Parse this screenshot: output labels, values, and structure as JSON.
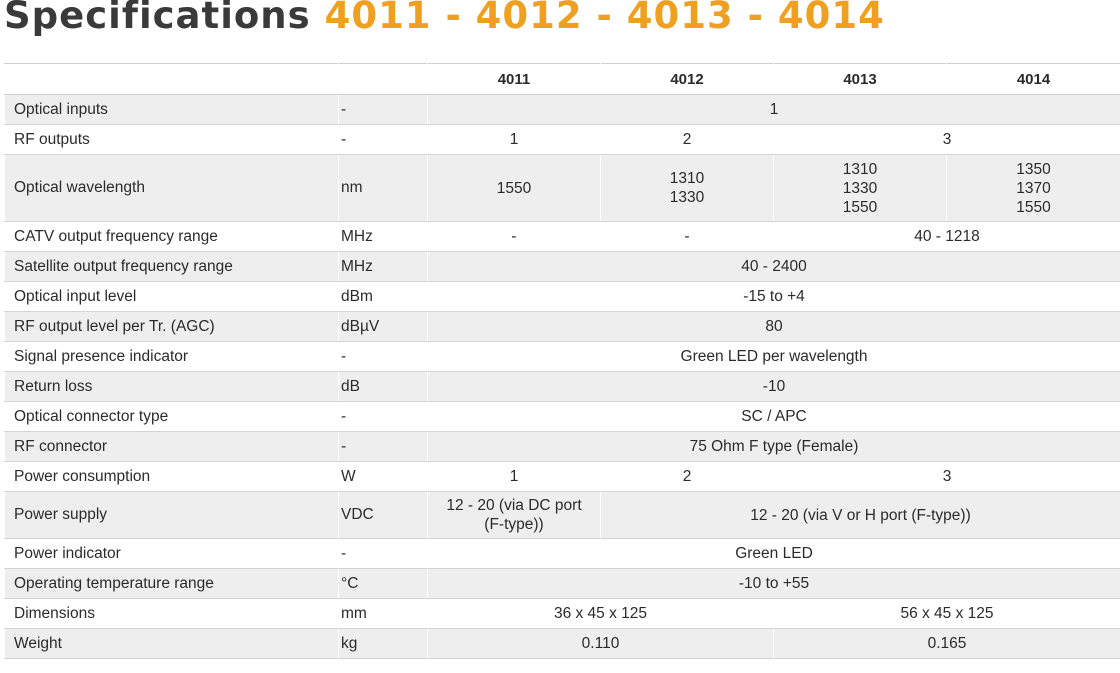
{
  "title": {
    "prefix": "Specifications",
    "models": "4011 - 4012 - 4013 - 4014"
  },
  "table": {
    "headers": [
      "4011",
      "4012",
      "4013",
      "4014"
    ],
    "rows": [
      {
        "name": "Optical inputs",
        "unit": "-",
        "v": [
          "1"
        ]
      },
      {
        "name": "RF outputs",
        "unit": "-",
        "v": [
          "1",
          "2",
          "3"
        ]
      },
      {
        "name": "Optical wavelength",
        "unit": "nm",
        "v": [
          "1550",
          "1310\n1330",
          "1310\n1330\n1550",
          "1350\n1370\n1550"
        ]
      },
      {
        "name": "CATV output frequency range",
        "unit": "MHz",
        "v": [
          "-",
          "-",
          "40 - 1218"
        ]
      },
      {
        "name": "Satellite output frequency range",
        "unit": "MHz",
        "v": [
          "40 - 2400"
        ]
      },
      {
        "name": "Optical input level",
        "unit": "dBm",
        "v": [
          "-15 to +4"
        ]
      },
      {
        "name": "RF output level per Tr. (AGC)",
        "unit": "dBµV",
        "v": [
          "80"
        ]
      },
      {
        "name": "Signal presence indicator",
        "unit": "-",
        "v": [
          "Green LED per wavelength"
        ]
      },
      {
        "name": "Return loss",
        "unit": "dB",
        "v": [
          "-10"
        ]
      },
      {
        "name": "Optical connector type",
        "unit": "-",
        "v": [
          "SC / APC"
        ]
      },
      {
        "name": "RF connector",
        "unit": "-",
        "v": [
          "75 Ohm F type (Female)"
        ]
      },
      {
        "name": "Power consumption",
        "unit": "W",
        "v": [
          "1",
          "2",
          "3"
        ]
      },
      {
        "name": "Power supply",
        "unit": "VDC",
        "v": [
          "12 - 20 (via DC port\n(F-type))",
          "12 - 20 (via V or H port (F-type))"
        ]
      },
      {
        "name": "Power indicator",
        "unit": "-",
        "v": [
          "Green LED"
        ]
      },
      {
        "name": "Operating temperature range",
        "unit": "°C",
        "v": [
          "-10 to +55"
        ]
      },
      {
        "name": "Dimensions",
        "unit": "mm",
        "v": [
          "36 x 45 x 125",
          "56 x 45 x 125"
        ]
      },
      {
        "name": "Weight",
        "unit": "kg",
        "v": [
          "0.110",
          "0.165"
        ]
      }
    ]
  }
}
